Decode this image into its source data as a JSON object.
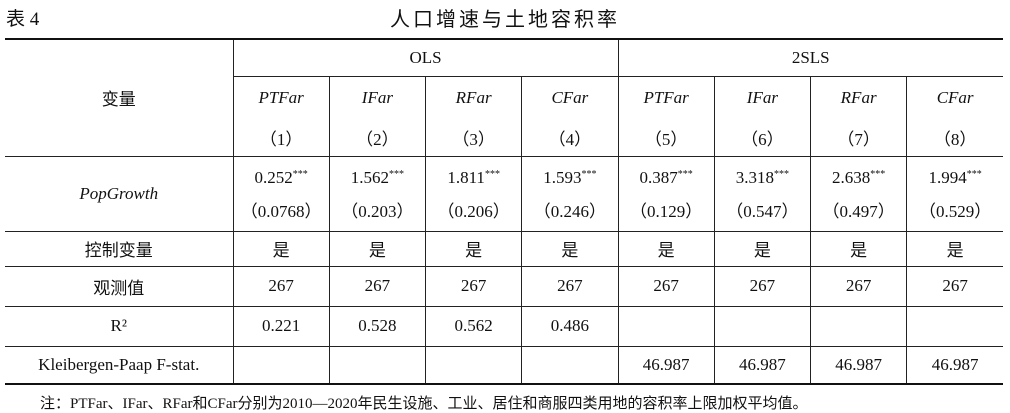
{
  "header": {
    "label": "表 4",
    "title": "人口增速与土地容积率"
  },
  "table": {
    "row_header": "变量",
    "groups": [
      "OLS",
      "2SLS"
    ],
    "variables": [
      "PTFar",
      "IFar",
      "RFar",
      "CFar",
      "PTFar",
      "IFar",
      "RFar",
      "CFar"
    ],
    "columns": [
      "（1）",
      "（2）",
      "（3）",
      "（4）",
      "（5）",
      "（6）",
      "（7）",
      "（8）"
    ],
    "coef_row": {
      "label": "PopGrowth",
      "coefficients": [
        0.252,
        1.562,
        1.811,
        1.593,
        0.387,
        3.318,
        2.638,
        1.994
      ],
      "stars": [
        "***",
        "***",
        "***",
        "***",
        "***",
        "***",
        "***",
        "***"
      ],
      "standard_errors": [
        "（0.0768）",
        "（0.203）",
        "（0.206）",
        "（0.246）",
        "（0.129）",
        "（0.547）",
        "（0.497）",
        "（0.529）"
      ]
    },
    "rows": [
      {
        "label": "控制变量",
        "values": [
          "是",
          "是",
          "是",
          "是",
          "是",
          "是",
          "是",
          "是"
        ]
      },
      {
        "label": "观测值",
        "values": [
          267,
          267,
          267,
          267,
          267,
          267,
          267,
          267
        ]
      },
      {
        "label": "R²",
        "values": [
          0.221,
          0.528,
          0.562,
          0.486,
          null,
          null,
          null,
          null
        ]
      },
      {
        "label": "Kleibergen-Paap F-stat.",
        "values": [
          null,
          null,
          null,
          null,
          46.987,
          46.987,
          46.987,
          46.987
        ]
      }
    ]
  },
  "note": "注：PTFar、IFar、RFar和CFar分别为2010—2020年民生设施、工业、居住和商服四类用地的容积率上限加权平均值。"
}
